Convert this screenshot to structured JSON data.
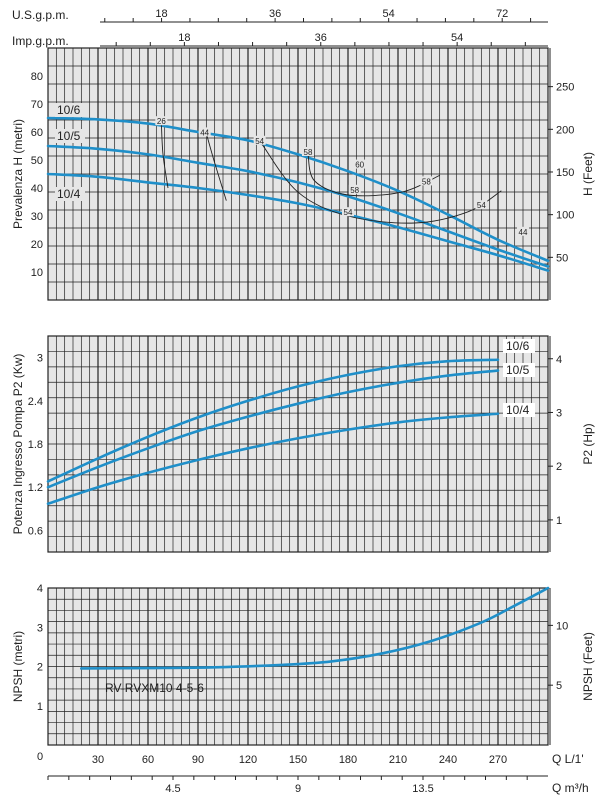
{
  "colors": {
    "curve": "#1f8fc9",
    "grid": "#222222",
    "panel_bg": "#e6e6e6",
    "eff": "#222222"
  },
  "top_axis": {
    "us_label": "U.S.g.p.m.",
    "us_ticks": [
      {
        "v": 18,
        "t": "18"
      },
      {
        "v": 36,
        "t": "36"
      },
      {
        "v": 54,
        "t": "54"
      },
      {
        "v": 72,
        "t": "72"
      }
    ],
    "imp_label": "Imp.g.p.m.",
    "imp_ticks": [
      {
        "v": 18,
        "t": "18"
      },
      {
        "v": 36,
        "t": "36"
      },
      {
        "v": 54,
        "t": "54"
      }
    ]
  },
  "bottom_axis": {
    "zero": "0",
    "q_lmin_label": "Q  L/1'",
    "q_lmin_ticks": [
      "30",
      "60",
      "90",
      "120",
      "150",
      "180",
      "210",
      "240",
      "270"
    ],
    "q_m3h_label": "Q  m³/h",
    "q_m3h_ticks": [
      "4.5",
      "9",
      "13.5"
    ]
  },
  "chart_data": [
    {
      "type": "line",
      "name": "head",
      "ylabel": "Prevalenza H (metri)",
      "ylabel_right": "H (Feet)",
      "xlabel": "Q L/1'",
      "xlim": [
        0,
        300
      ],
      "ylim": [
        0,
        90
      ],
      "yticks": [
        10,
        20,
        30,
        40,
        50,
        60,
        70,
        80
      ],
      "yticks_right": [
        {
          "v": 50,
          "t": "50"
        },
        {
          "v": 100,
          "t": "100"
        },
        {
          "v": 150,
          "t": "150"
        },
        {
          "v": 200,
          "t": "200"
        },
        {
          "v": 250,
          "t": "250"
        }
      ],
      "grid": true,
      "series": [
        {
          "name": "10/6",
          "x": [
            0,
            30,
            60,
            90,
            120,
            150,
            180,
            210,
            240,
            270,
            300
          ],
          "y": [
            65,
            64.5,
            63,
            60,
            57,
            52,
            46,
            39,
            30.5,
            21.5,
            14
          ]
        },
        {
          "name": "10/5",
          "x": [
            0,
            30,
            60,
            90,
            120,
            150,
            180,
            210,
            240,
            270,
            300
          ],
          "y": [
            55,
            54,
            52,
            49,
            46,
            42,
            37,
            31,
            24.5,
            18,
            12
          ]
        },
        {
          "name": "10/4",
          "x": [
            0,
            30,
            60,
            90,
            120,
            150,
            180,
            210,
            240,
            270,
            300
          ],
          "y": [
            45,
            44,
            42,
            40,
            37.5,
            34.5,
            30.5,
            26,
            21,
            16,
            10.5
          ]
        }
      ],
      "efficiency_curves": [
        {
          "label": "26",
          "pts": [
            [
              68,
              63.5
            ],
            [
              69,
              52
            ],
            [
              72,
              40
            ]
          ]
        },
        {
          "label": "44",
          "pts": [
            [
              95,
              59.5
            ],
            [
              100,
              49
            ],
            [
              107,
              35.5
            ]
          ]
        },
        {
          "label": "54",
          "pts": [
            [
              128,
              56
            ],
            [
              150,
              38.5
            ],
            [
              180,
              30
            ],
            [
              220,
              27.5
            ],
            [
              252,
              31.5
            ],
            [
              272,
              39
            ]
          ]
        },
        {
          "label": "58",
          "pts": [
            [
              156,
              52
            ],
            [
              160,
              42.5
            ],
            [
              180,
              37.5
            ],
            [
              212,
              38.5
            ],
            [
              235,
              44.5
            ]
          ]
        }
      ],
      "efficiency_labels": [
        {
          "t": "26",
          "x": 68,
          "y": 63.5
        },
        {
          "t": "44",
          "x": 94,
          "y": 59.5
        },
        {
          "t": "54",
          "x": 127,
          "y": 56.5
        },
        {
          "t": "58",
          "x": 156,
          "y": 52.5
        },
        {
          "t": "60",
          "x": 187,
          "y": 48
        },
        {
          "t": "58",
          "x": 184,
          "y": 39
        },
        {
          "t": "58",
          "x": 227,
          "y": 42
        },
        {
          "t": "54",
          "x": 180,
          "y": 31
        },
        {
          "t": "54",
          "x": 260,
          "y": 33.5
        },
        {
          "t": "44",
          "x": 285,
          "y": 24
        }
      ]
    },
    {
      "type": "line",
      "name": "power",
      "ylabel": "Potenza Ingresso Pompa P2 (Kw)",
      "ylabel_right": "P2 (Hp)",
      "xlim": [
        0,
        300
      ],
      "ylim": [
        0.3,
        3.3
      ],
      "yticks": [
        {
          "v": 0.6,
          "t": "0.6"
        },
        {
          "v": 1.2,
          "t": "1.2"
        },
        {
          "v": 1.8,
          "t": "1.8"
        },
        {
          "v": 2.4,
          "t": "2.4"
        },
        {
          "v": 3.0,
          "t": "3"
        }
      ],
      "yticks_right": [
        {
          "v": 1,
          "t": "1"
        },
        {
          "v": 2,
          "t": "2"
        },
        {
          "v": 3,
          "t": "3"
        },
        {
          "v": 4,
          "t": "4"
        }
      ],
      "grid": true,
      "series": [
        {
          "name": "10/6",
          "x": [
            0,
            30,
            60,
            90,
            120,
            150,
            180,
            210,
            240,
            270
          ],
          "y": [
            1.28,
            1.6,
            1.9,
            2.17,
            2.4,
            2.6,
            2.76,
            2.88,
            2.95,
            2.97
          ]
        },
        {
          "name": "10/5",
          "x": [
            0,
            30,
            60,
            90,
            120,
            150,
            180,
            210,
            240,
            270
          ],
          "y": [
            1.2,
            1.48,
            1.74,
            1.98,
            2.18,
            2.36,
            2.52,
            2.65,
            2.75,
            2.82
          ]
        },
        {
          "name": "10/4",
          "x": [
            0,
            30,
            60,
            90,
            120,
            150,
            180,
            210,
            240,
            270
          ],
          "y": [
            0.97,
            1.2,
            1.4,
            1.58,
            1.74,
            1.88,
            2.0,
            2.1,
            2.17,
            2.22
          ]
        }
      ]
    },
    {
      "type": "line",
      "name": "npsh",
      "ylabel": "NPSH (metri)",
      "ylabel_right": "NPSH (Feet)",
      "annotation": "RV-RVXM10 4-5-6",
      "xlim": [
        0,
        300
      ],
      "ylim": [
        0,
        4
      ],
      "yticks": [
        1,
        2,
        3,
        4
      ],
      "yticks_right": [
        {
          "v": 5,
          "t": "5"
        },
        {
          "v": 10,
          "t": "10"
        }
      ],
      "grid": true,
      "series": [
        {
          "name": "NPSH",
          "x": [
            20,
            60,
            100,
            140,
            170,
            200,
            230,
            260,
            280,
            300
          ],
          "y": [
            1.95,
            1.96,
            1.98,
            2.04,
            2.13,
            2.33,
            2.65,
            3.12,
            3.55,
            4.0
          ]
        }
      ]
    }
  ]
}
